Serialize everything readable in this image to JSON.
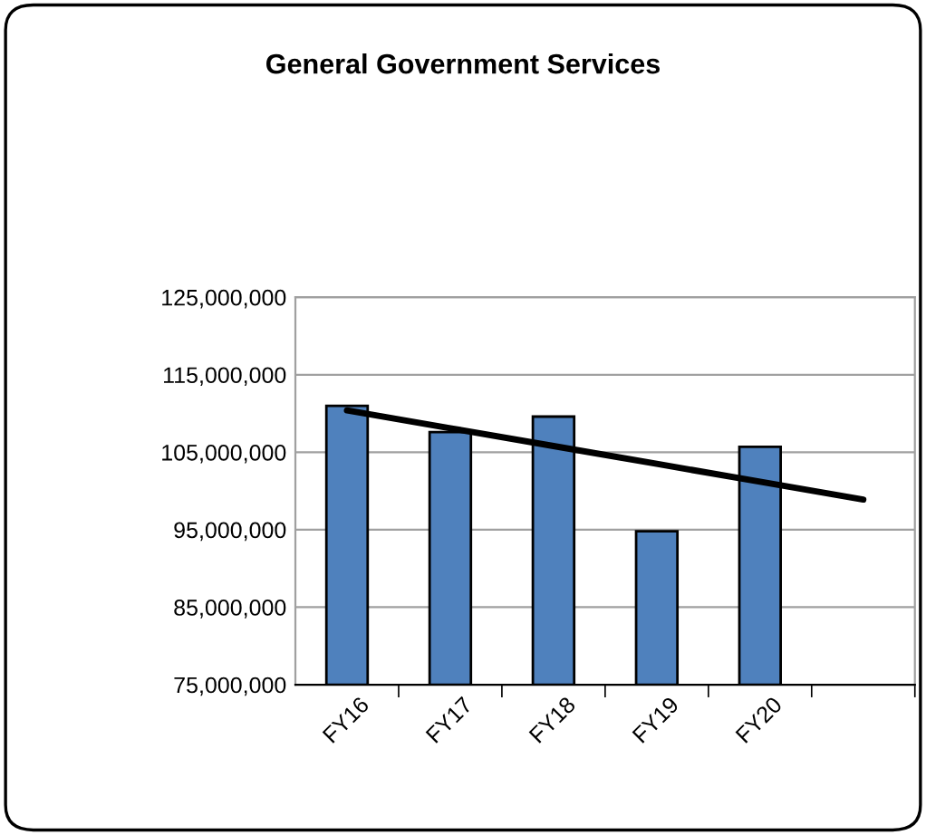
{
  "chart_data": {
    "type": "bar",
    "title": "General Government Services",
    "categories": [
      "FY16",
      "FY17",
      "FY18",
      "FY19",
      "FY20",
      null
    ],
    "series": [
      {
        "color": "#4f81bd",
        "values": [
          111000000,
          107600000,
          109600000,
          94800000,
          105700000,
          null
        ]
      },
      {
        "type": "line",
        "color": "#000000",
        "values": [
          110400000,
          108100000,
          105800000,
          103500000,
          101200000,
          98900000
        ]
      }
    ],
    "ylim": [
      75000000,
      125000000
    ],
    "yticks": [
      {
        "value": 75000000,
        "label": "75,000,000"
      },
      {
        "value": 85000000,
        "label": "85,000,000"
      },
      {
        "value": 95000000,
        "label": "95,000,000"
      },
      {
        "value": 105000000,
        "label": "105,000,000"
      },
      {
        "value": 115000000,
        "label": "115,000,000"
      },
      {
        "value": 125000000,
        "label": "125,000,000"
      }
    ],
    "grid": "y",
    "legend": false
  }
}
